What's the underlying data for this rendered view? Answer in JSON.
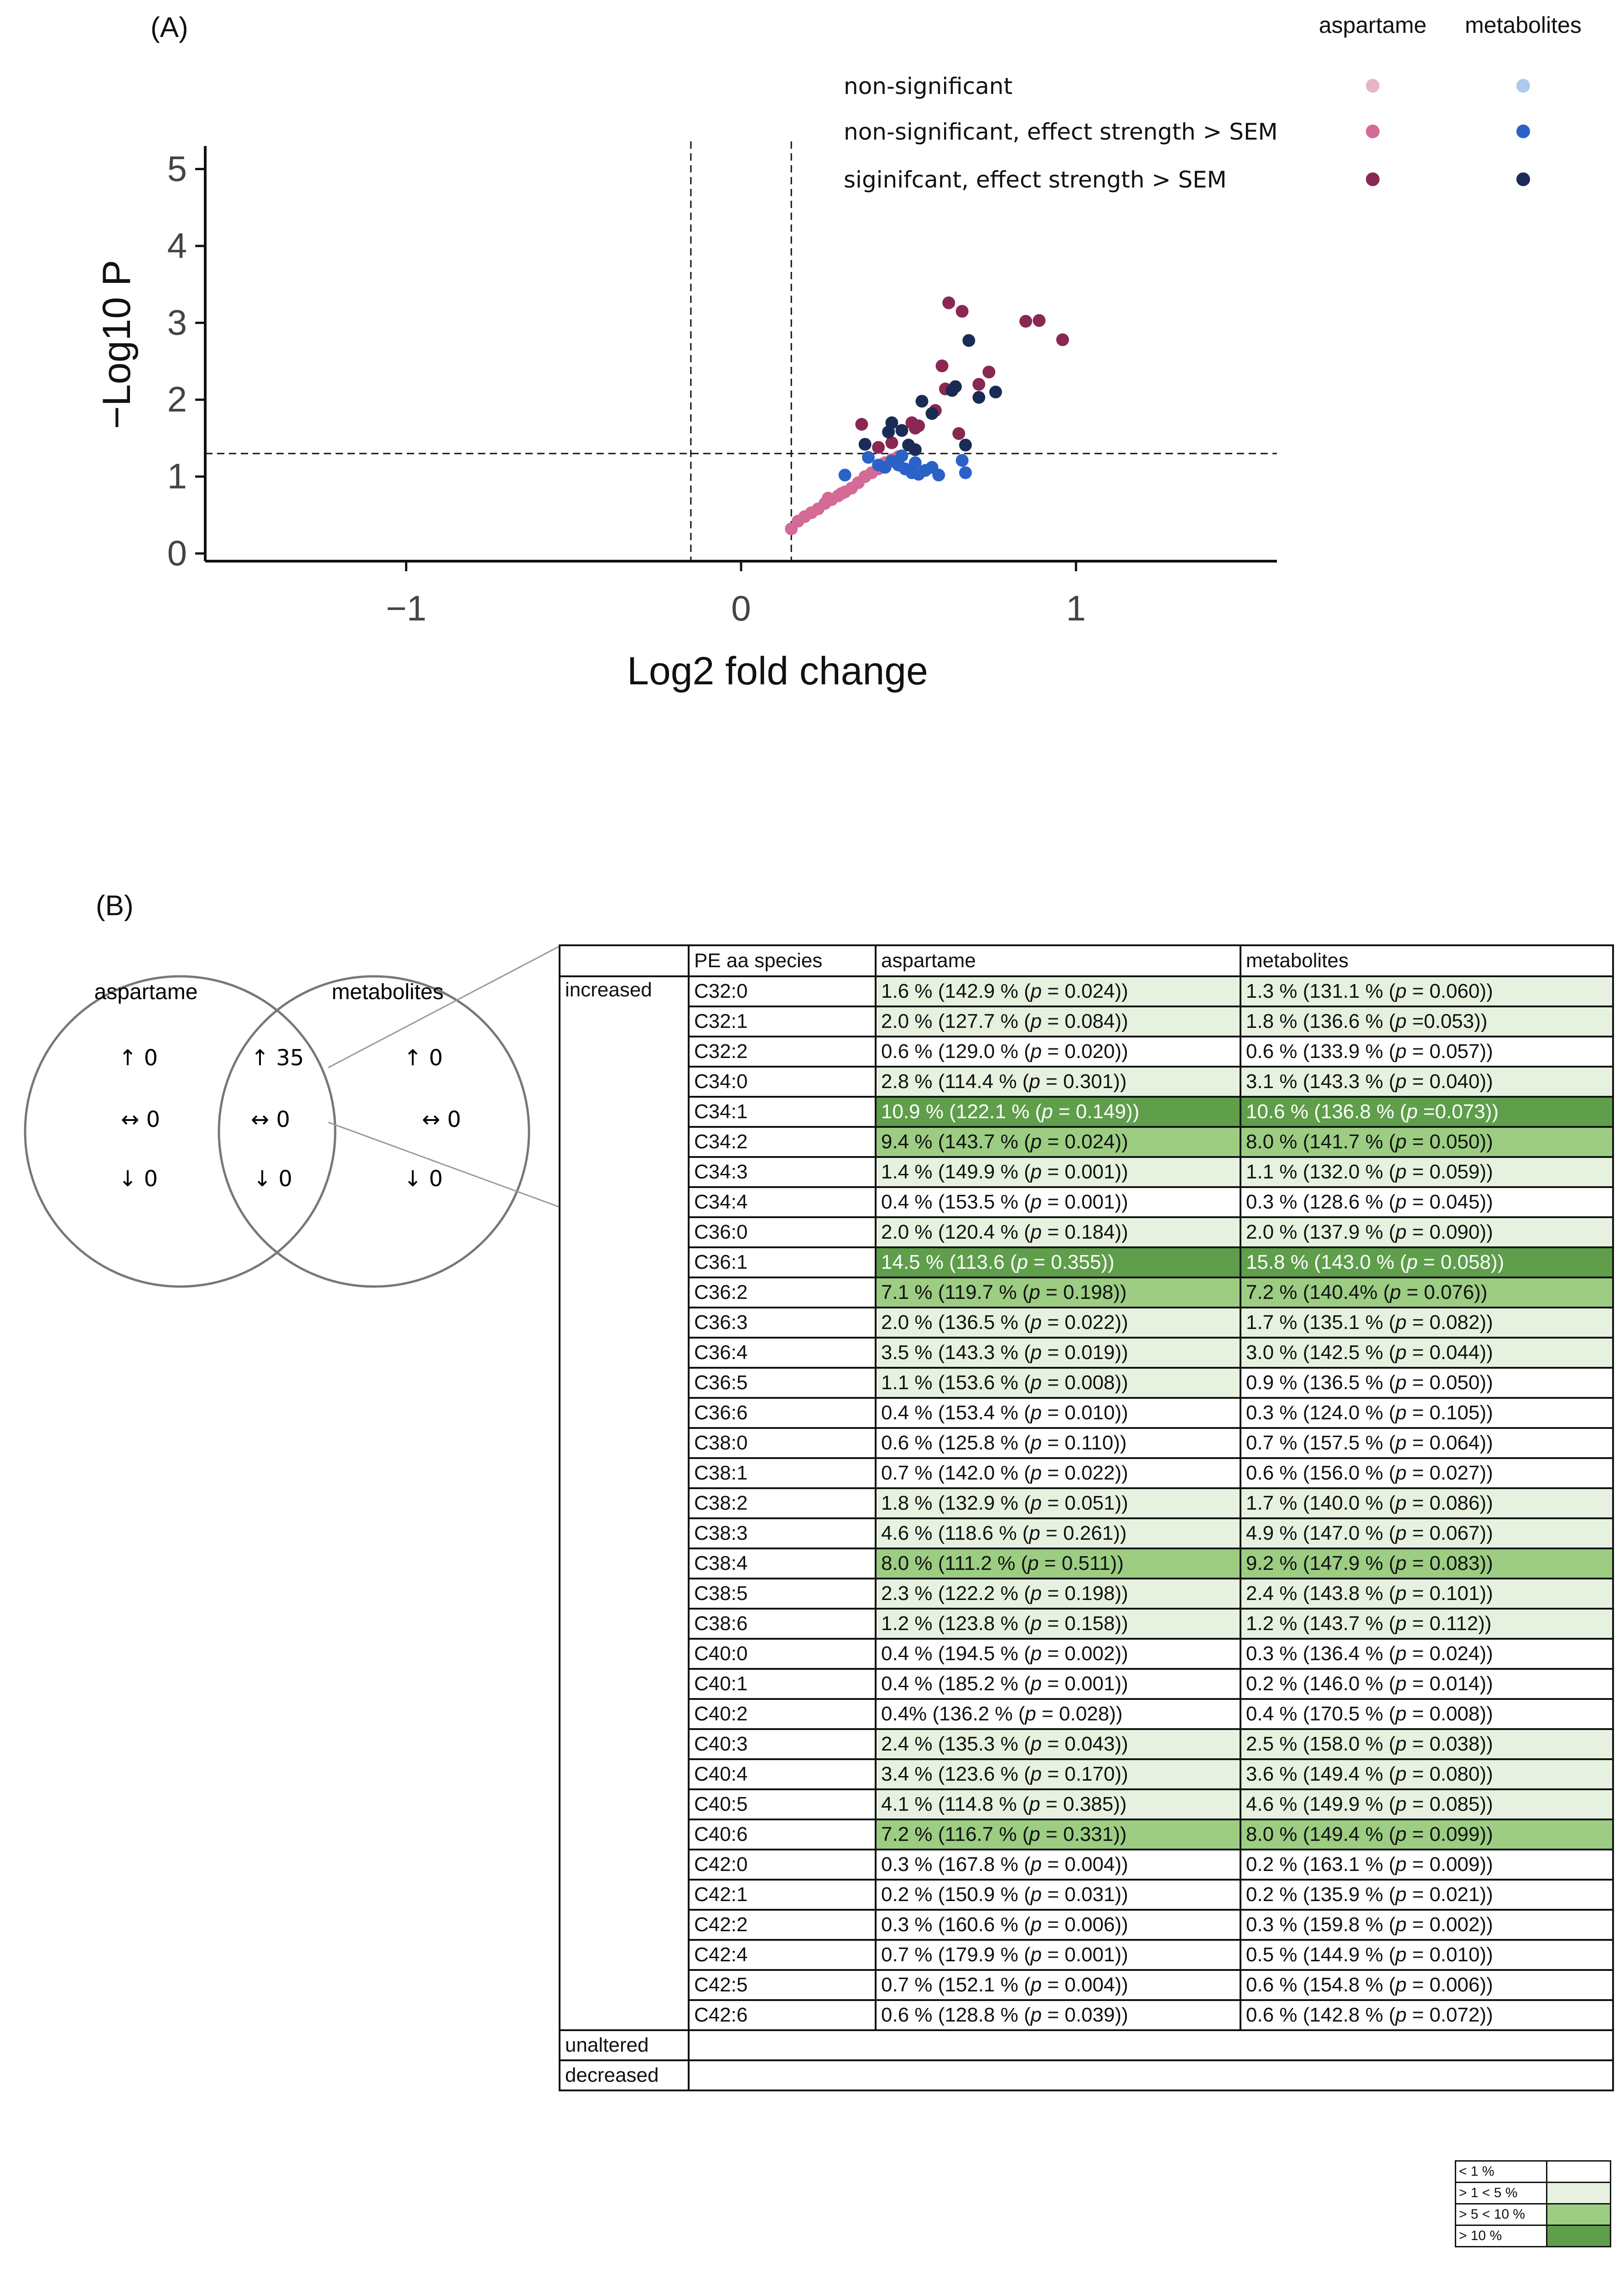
{
  "panel_a": {
    "label": "(A)",
    "chart_data": {
      "type": "scatter",
      "title": "",
      "xlabel": "Log2 fold change",
      "ylabel": "−Log10 P",
      "xlim": [
        -1.6,
        1.6
      ],
      "ylim": [
        -0.1,
        5.3
      ],
      "xticks": [
        -1,
        0,
        1
      ],
      "xtick_labels": [
        "−1",
        "0",
        "1"
      ],
      "yticks": [
        0,
        1,
        2,
        3,
        4,
        5
      ],
      "ytick_labels": [
        "0",
        "1",
        "2",
        "3",
        "4",
        "5"
      ],
      "vlines": [
        -0.15,
        0.15
      ],
      "hlines": [
        1.3
      ],
      "legend": {
        "position": "top-right",
        "columns": [
          "aspartame",
          "metabolites"
        ],
        "rows": [
          "non-significant",
          "non-significant, effect strength > SEM",
          "siginifcant, effect strength > SEM"
        ],
        "colors": [
          [
            "#e8b4c8",
            "#aec9ee"
          ],
          [
            "#d46a96",
            "#2b62c8"
          ],
          [
            "#8a2752",
            "#1a2c55"
          ]
        ]
      },
      "series": [
        {
          "name": "aspartame, non-significant, effect strength > SEM",
          "color": "#d46a96",
          "points": [
            [
              0.15,
              0.32
            ],
            [
              0.17,
              0.42
            ],
            [
              0.19,
              0.48
            ],
            [
              0.21,
              0.53
            ],
            [
              0.23,
              0.58
            ],
            [
              0.25,
              0.65
            ],
            [
              0.27,
              0.7
            ],
            [
              0.29,
              0.75
            ],
            [
              0.31,
              0.8
            ],
            [
              0.33,
              0.85
            ],
            [
              0.35,
              0.92
            ],
            [
              0.37,
              1.0
            ],
            [
              0.39,
              1.05
            ],
            [
              0.41,
              1.1
            ],
            [
              0.43,
              1.18
            ],
            [
              0.45,
              1.22
            ],
            [
              0.47,
              1.26
            ],
            [
              0.26,
              0.72
            ],
            [
              0.3,
              0.78
            ]
          ]
        },
        {
          "name": "metabolites, non-significant, effect strength > SEM",
          "color": "#2b62c8",
          "points": [
            [
              0.31,
              1.02
            ],
            [
              0.38,
              1.25
            ],
            [
              0.41,
              1.15
            ],
            [
              0.43,
              1.12
            ],
            [
              0.45,
              1.2
            ],
            [
              0.47,
              1.15
            ],
            [
              0.49,
              1.1
            ],
            [
              0.51,
              1.05
            ],
            [
              0.53,
              1.03
            ],
            [
              0.55,
              1.08
            ],
            [
              0.57,
              1.12
            ],
            [
              0.59,
              1.02
            ],
            [
              0.52,
              1.18
            ],
            [
              0.48,
              1.27
            ],
            [
              0.66,
              1.21
            ],
            [
              0.67,
              1.05
            ]
          ]
        },
        {
          "name": "aspartame, siginifcant, effect strength > SEM",
          "color": "#8a2752",
          "points": [
            [
              0.36,
              1.68
            ],
            [
              0.41,
              1.38
            ],
            [
              0.45,
              1.44
            ],
            [
              0.51,
              1.7
            ],
            [
              0.52,
              1.63
            ],
            [
              0.53,
              1.66
            ],
            [
              0.58,
              1.86
            ],
            [
              0.6,
              2.44
            ],
            [
              0.61,
              2.14
            ],
            [
              0.62,
              3.26
            ],
            [
              0.65,
              1.56
            ],
            [
              0.66,
              3.15
            ],
            [
              0.74,
              2.36
            ],
            [
              0.85,
              3.02
            ],
            [
              0.89,
              3.03
            ],
            [
              0.96,
              2.78
            ],
            [
              0.71,
              2.2
            ]
          ]
        },
        {
          "name": "metabolites, siginifcant, effect strength > SEM",
          "color": "#1a2c55",
          "points": [
            [
              0.37,
              1.42
            ],
            [
              0.44,
              1.58
            ],
            [
              0.45,
              1.7
            ],
            [
              0.5,
              1.41
            ],
            [
              0.52,
              1.35
            ],
            [
              0.54,
              1.98
            ],
            [
              0.57,
              1.82
            ],
            [
              0.63,
              2.12
            ],
            [
              0.64,
              2.17
            ],
            [
              0.67,
              1.41
            ],
            [
              0.68,
              2.77
            ],
            [
              0.71,
              2.03
            ],
            [
              0.76,
              2.1
            ],
            [
              0.48,
              1.6
            ]
          ]
        }
      ]
    }
  },
  "panel_b": {
    "label": "(B)",
    "venn": {
      "left_label": "aspartame",
      "right_label": "metabolites",
      "left": {
        "up": "↑ 0",
        "same": "↔ 0",
        "down": "↓ 0"
      },
      "middle": {
        "up": "↑ 35",
        "same": "↔ 0",
        "down": "↓ 0"
      },
      "right": {
        "up": "↑ 0",
        "same": "↔ 0",
        "down": "↓ 0"
      }
    },
    "table": {
      "headers": [
        "",
        "PE aa species",
        "aspartame",
        "metabolites"
      ],
      "groups": {
        "increased": "increased",
        "unaltered": "unaltered",
        "decreased": "decreased"
      },
      "rows": [
        {
          "species": "C32:0",
          "asp": "1.6 % (142.9 % (p = 0.024))",
          "asp_class": 1,
          "met": "1.3 % (131.1 % (p = 0.060))",
          "met_class": 1
        },
        {
          "species": "C32:1",
          "asp": "2.0 % (127.7 % (p = 0.084))",
          "asp_class": 1,
          "met": "1.8 % (136.6 % (p =0.053))",
          "met_class": 1
        },
        {
          "species": "C32:2",
          "asp": "0.6 % (129.0 % (p = 0.020))",
          "asp_class": 0,
          "met": "0.6 % (133.9 % (p = 0.057))",
          "met_class": 0
        },
        {
          "species": "C34:0",
          "asp": "2.8 % (114.4 % (p = 0.301))",
          "asp_class": 1,
          "met": "3.1 % (143.3 % (p = 0.040))",
          "met_class": 1
        },
        {
          "species": "C34:1",
          "asp": "10.9 % (122.1 % (p = 0.149))",
          "asp_class": 3,
          "met": "10.6 % (136.8 % (p =0.073))",
          "met_class": 3
        },
        {
          "species": "C34:2",
          "asp": "9.4 % (143.7 % (p = 0.024))",
          "asp_class": 2,
          "met": "8.0 % (141.7 % (p = 0.050))",
          "met_class": 2
        },
        {
          "species": "C34:3",
          "asp": "1.4 % (149.9 % (p = 0.001))",
          "asp_class": 1,
          "met": "1.1 % (132.0 % (p = 0.059))",
          "met_class": 1
        },
        {
          "species": "C34:4",
          "asp": "0.4 % (153.5 % (p = 0.001))",
          "asp_class": 0,
          "met": "0.3 % (128.6 % (p = 0.045))",
          "met_class": 0
        },
        {
          "species": "C36:0",
          "asp": "2.0 % (120.4 % (p = 0.184))",
          "asp_class": 1,
          "met": "2.0 % (137.9 % (p = 0.090))",
          "met_class": 1
        },
        {
          "species": "C36:1",
          "asp": "14.5 % (113.6 (p = 0.355))",
          "asp_class": 3,
          "met": "15.8 % (143.0 % (p = 0.058))",
          "met_class": 3
        },
        {
          "species": "C36:2",
          "asp": "7.1 % (119.7 % (p = 0.198))",
          "asp_class": 2,
          "met": "7.2 % (140.4% (p = 0.076))",
          "met_class": 2
        },
        {
          "species": "C36:3",
          "asp": "2.0 % (136.5 % (p = 0.022))",
          "asp_class": 1,
          "met": "1.7 % (135.1 % (p = 0.082))",
          "met_class": 1
        },
        {
          "species": "C36:4",
          "asp": "3.5 % (143.3 % (p = 0.019))",
          "asp_class": 1,
          "met": "3.0 % (142.5 % (p = 0.044))",
          "met_class": 1
        },
        {
          "species": "C36:5",
          "asp": "1.1 % (153.6 % (p = 0.008))",
          "asp_class": 1,
          "met": "0.9 % (136.5 % (p = 0.050))",
          "met_class": 0
        },
        {
          "species": "C36:6",
          "asp": "0.4 % (153.4 % (p = 0.010))",
          "asp_class": 0,
          "met": "0.3 % (124.0 % (p = 0.105))",
          "met_class": 0
        },
        {
          "species": "C38:0",
          "asp": "0.6 % (125.8 % (p = 0.110))",
          "asp_class": 0,
          "met": "0.7 % (157.5 % (p = 0.064))",
          "met_class": 0
        },
        {
          "species": "C38:1",
          "asp": "0.7 % (142.0 % (p = 0.022))",
          "asp_class": 0,
          "met": "0.6 % (156.0 % (p = 0.027))",
          "met_class": 0
        },
        {
          "species": "C38:2",
          "asp": "1.8 % (132.9 % (p = 0.051))",
          "asp_class": 1,
          "met": "1.7 % (140.0 % (p = 0.086))",
          "met_class": 1
        },
        {
          "species": "C38:3",
          "asp": "4.6 % (118.6 % (p = 0.261))",
          "asp_class": 1,
          "met": "4.9 % (147.0 % (p = 0.067))",
          "met_class": 1
        },
        {
          "species": "C38:4",
          "asp": "8.0 % (111.2 % (p = 0.511))",
          "asp_class": 2,
          "met": "9.2 % (147.9 % (p = 0.083))",
          "met_class": 2
        },
        {
          "species": "C38:5",
          "asp": "2.3 % (122.2 % (p = 0.198))",
          "asp_class": 1,
          "met": "2.4 % (143.8 % (p = 0.101))",
          "met_class": 1
        },
        {
          "species": "C38:6",
          "asp": "1.2 % (123.8 % (p = 0.158))",
          "asp_class": 1,
          "met": "1.2 % (143.7 % (p = 0.112))",
          "met_class": 1
        },
        {
          "species": "C40:0",
          "asp": "0.4 % (194.5 % (p = 0.002))",
          "asp_class": 0,
          "met": "0.3 % (136.4 % (p = 0.024))",
          "met_class": 0
        },
        {
          "species": "C40:1",
          "asp": "0.4 % (185.2 % (p = 0.001))",
          "asp_class": 0,
          "met": "0.2 % (146.0 % (p = 0.014))",
          "met_class": 0
        },
        {
          "species": "C40:2",
          "asp": "0.4% (136.2 % (p = 0.028))",
          "asp_class": 0,
          "met": "0.4 % (170.5 % (p = 0.008))",
          "met_class": 0
        },
        {
          "species": "C40:3",
          "asp": "2.4 % (135.3 % (p = 0.043))",
          "asp_class": 1,
          "met": "2.5 % (158.0 % (p = 0.038))",
          "met_class": 1
        },
        {
          "species": "C40:4",
          "asp": "3.4 % (123.6 % (p = 0.170))",
          "asp_class": 1,
          "met": "3.6 % (149.4 % (p = 0.080))",
          "met_class": 1
        },
        {
          "species": "C40:5",
          "asp": "4.1 % (114.8 % (p = 0.385))",
          "asp_class": 1,
          "met": "4.6 % (149.9 % (p = 0.085))",
          "met_class": 1
        },
        {
          "species": "C40:6",
          "asp": "7.2 % (116.7 % (p = 0.331))",
          "asp_class": 2,
          "met": "8.0 % (149.4 % (p = 0.099))",
          "met_class": 2
        },
        {
          "species": "C42:0",
          "asp": "0.3 % (167.8 % (p = 0.004))",
          "asp_class": 0,
          "met": "0.2 % (163.1 % (p = 0.009))",
          "met_class": 0
        },
        {
          "species": "C42:1",
          "asp": "0.2 % (150.9 % (p = 0.031))",
          "asp_class": 0,
          "met": "0.2 % (135.9 % (p = 0.021))",
          "met_class": 0
        },
        {
          "species": "C42:2",
          "asp": "0.3 % (160.6 % (p = 0.006))",
          "asp_class": 0,
          "met": "0.3 % (159.8 % (p = 0.002))",
          "met_class": 0
        },
        {
          "species": "C42:4",
          "asp": "0.7 % (179.9 % (p = 0.001))",
          "asp_class": 0,
          "met": "0.5 % (144.9 % (p = 0.010))",
          "met_class": 0
        },
        {
          "species": "C42:5",
          "asp": "0.7 % (152.1 % (p = 0.004))",
          "asp_class": 0,
          "met": "0.6 % (154.8 % (p = 0.006))",
          "met_class": 0
        },
        {
          "species": "C42:6",
          "asp": "0.6 % (128.8 % (p = 0.039))",
          "asp_class": 0,
          "met": "0.6 % (142.8 % (p = 0.072))",
          "met_class": 0
        }
      ]
    },
    "legend": {
      "items": [
        {
          "label": "< 1 %",
          "class": 0
        },
        {
          "label": "> 1 < 5 %",
          "class": 1
        },
        {
          "label": "> 5 < 10 %",
          "class": 2
        },
        {
          "label": "> 10 %",
          "class": 3
        }
      ]
    }
  }
}
